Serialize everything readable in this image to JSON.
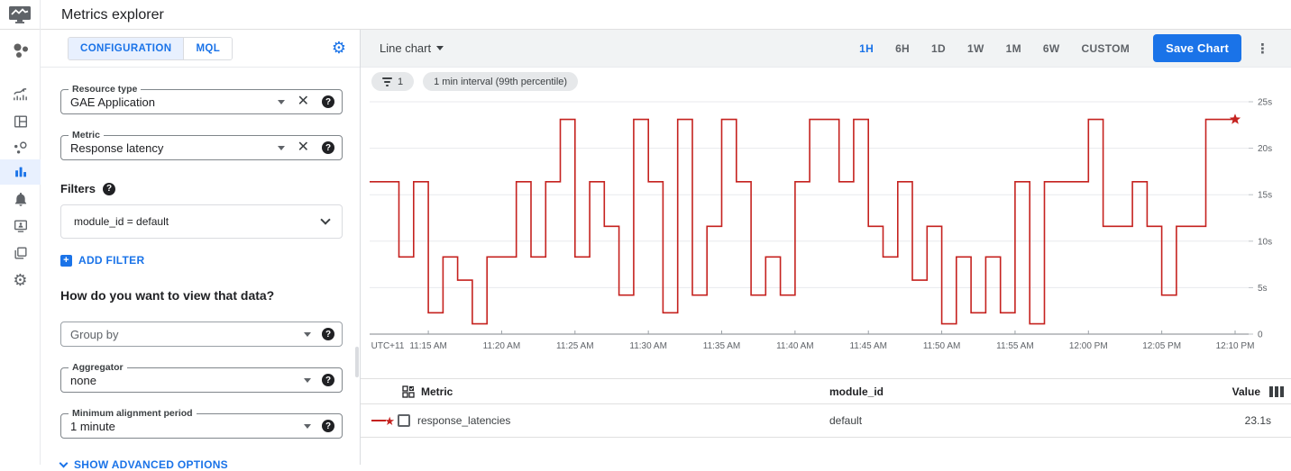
{
  "header": {
    "title": "Metrics explorer"
  },
  "sidebar": {
    "items": [
      {
        "name": "monitoring-logo"
      },
      {
        "name": "overview"
      },
      {
        "name": "dashboards"
      },
      {
        "name": "services"
      },
      {
        "name": "metrics-explorer",
        "selected": true
      },
      {
        "name": "alerting"
      },
      {
        "name": "uptime-checks"
      },
      {
        "name": "groups"
      },
      {
        "name": "settings"
      }
    ]
  },
  "config": {
    "tabs": [
      {
        "label": "CONFIGURATION"
      },
      {
        "label": "MQL"
      }
    ],
    "active_tab": "CONFIGURATION",
    "resource_type": {
      "label": "Resource type",
      "value": "GAE Application"
    },
    "metric": {
      "label": "Metric",
      "value": "Response latency"
    },
    "filters_label": "Filters",
    "filter_value": "module_id = default",
    "add_filter_label": "ADD FILTER",
    "view_question": "How do you want to view that data?",
    "group_by": {
      "placeholder": "Group by"
    },
    "aggregator": {
      "label": "Aggregator",
      "value": "none"
    },
    "min_alignment": {
      "label": "Minimum alignment period",
      "value": "1 minute"
    },
    "advanced_options_label": "SHOW ADVANCED OPTIONS"
  },
  "toolbar": {
    "chart_type_label": "Line chart",
    "time_ranges": [
      "1H",
      "6H",
      "1D",
      "1W",
      "1M",
      "6W",
      "CUSTOM"
    ],
    "active_time_range": "1H",
    "save_button_label": "Save Chart"
  },
  "chips": [
    {
      "icon": "filter",
      "label": "1"
    },
    {
      "label": "1 min interval (99th percentile)"
    }
  ],
  "chart_data": {
    "type": "line",
    "style": "stepped",
    "unit": "seconds",
    "ylim": [
      0,
      25
    ],
    "y_ticks": [
      0,
      5,
      10,
      15,
      20,
      25
    ],
    "y_tick_labels": [
      "0",
      "5s",
      "10s",
      "15s",
      "20s",
      "25s"
    ],
    "x_axis_prefix": "UTC+11",
    "x_start_time": "11:11 AM",
    "x_interval_minutes": 1,
    "x_tick_labels": [
      "11:15 AM",
      "11:20 AM",
      "11:25 AM",
      "11:30 AM",
      "11:35 AM",
      "11:40 AM",
      "11:45 AM",
      "11:50 AM",
      "11:55 AM",
      "12:00 PM",
      "12:05 PM",
      "12:10 PM"
    ],
    "x_tick_start_index": 4,
    "x_tick_step": 5,
    "last_value_marker": "star",
    "series": [
      {
        "name": "response_latencies",
        "color": "#c5221f",
        "values": [
          16.4,
          16.4,
          8.3,
          16.4,
          2.3,
          8.3,
          5.8,
          1.1,
          8.3,
          8.3,
          16.4,
          8.3,
          16.4,
          23.1,
          8.3,
          16.4,
          11.6,
          4.2,
          23.1,
          16.4,
          2.3,
          23.1,
          4.2,
          11.6,
          23.1,
          16.4,
          4.2,
          8.3,
          4.2,
          16.4,
          23.1,
          23.1,
          16.4,
          23.1,
          11.6,
          8.3,
          16.4,
          5.8,
          11.6,
          1.1,
          8.3,
          2.3,
          8.3,
          2.3,
          16.4,
          1.1,
          16.4,
          16.4,
          16.4,
          23.1,
          11.6,
          11.6,
          16.4,
          11.6,
          4.2,
          11.6,
          11.6,
          23.1,
          23.1,
          23.1
        ]
      }
    ]
  },
  "table": {
    "columns": {
      "metric": "Metric",
      "module_id": "module_id",
      "value": "Value"
    },
    "rows": [
      {
        "metric": "response_latencies",
        "module_id": "default",
        "value": "23.1s"
      }
    ]
  },
  "colors": {
    "accent": "#1a73e8",
    "series_red": "#c5221f",
    "tab_bg": "#e8f0fe",
    "toolbar_bg": "#f1f3f4"
  }
}
